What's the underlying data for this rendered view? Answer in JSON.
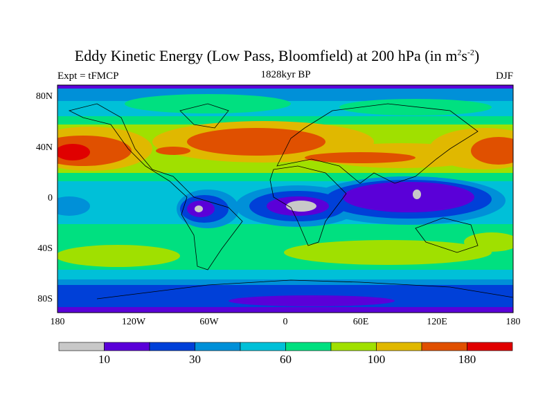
{
  "title": {
    "main": "Eddy Kinetic Energy (Low Pass, Bloomfield) at 200 hPa (in m",
    "sup1": "2",
    "mid": "s",
    "sup2": "-2",
    "end": ")"
  },
  "left_label": "Expt = tFMCP",
  "center_label": "1828kyr BP",
  "right_label": "DJF",
  "chart_data": {
    "type": "heatmap",
    "title": "Eddy Kinetic Energy (Low Pass, Bloomfield) at 200 hPa (in m^2s^-2)",
    "lat_ticks": [
      "80N",
      "40N",
      "0",
      "40S",
      "80S"
    ],
    "lon_ticks": [
      "180",
      "120W",
      "60W",
      "0",
      "60E",
      "120E",
      "180"
    ],
    "colorbar": {
      "colors": [
        "#c8c8c8",
        "#5a00d8",
        "#0040d8",
        "#0090d8",
        "#00c0d8",
        "#00e080",
        "#a0e000",
        "#e0b800",
        "#e05000",
        "#e00000"
      ],
      "labels": [
        "10",
        "30",
        "60",
        "100",
        "180"
      ]
    }
  }
}
